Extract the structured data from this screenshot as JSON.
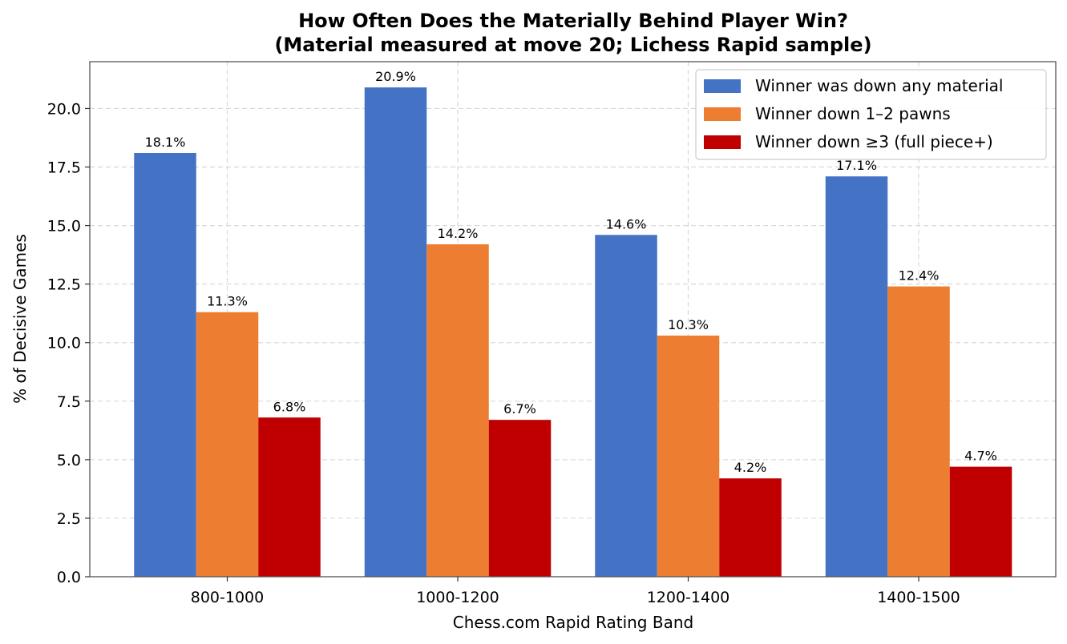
{
  "chart_data": {
    "type": "bar",
    "title": "How Often Does the Materially Behind Player Win?",
    "subtitle": "(Material measured at move 20; Lichess Rapid sample)",
    "xlabel": "Chess.com Rapid Rating Band",
    "ylabel": "% of Decisive Games",
    "categories": [
      "800-1000",
      "1000-1200",
      "1200-1400",
      "1400-1500"
    ],
    "ylim": [
      0,
      22
    ],
    "yticks": [
      0.0,
      2.5,
      5.0,
      7.5,
      10.0,
      12.5,
      15.0,
      17.5,
      20.0
    ],
    "ytick_labels": [
      "0.0",
      "2.5",
      "5.0",
      "7.5",
      "10.0",
      "12.5",
      "15.0",
      "17.5",
      "20.0"
    ],
    "grid": true,
    "legend_position": "top-right",
    "series": [
      {
        "name": "Winner was down any material",
        "color": "#4472c4",
        "values": [
          18.1,
          20.9,
          14.6,
          17.1
        ],
        "labels": [
          "18.1%",
          "20.9%",
          "14.6%",
          "17.1%"
        ]
      },
      {
        "name": "Winner down 1–2 pawns",
        "color": "#ed7d31",
        "values": [
          11.3,
          14.2,
          10.3,
          12.4
        ],
        "labels": [
          "11.3%",
          "14.2%",
          "10.3%",
          "12.4%"
        ]
      },
      {
        "name": "Winner down ≥3 (full piece+)",
        "color": "#c00000",
        "values": [
          6.8,
          6.7,
          4.2,
          4.7
        ],
        "labels": [
          "6.8%",
          "6.7%",
          "4.2%",
          "4.7%"
        ]
      }
    ]
  }
}
